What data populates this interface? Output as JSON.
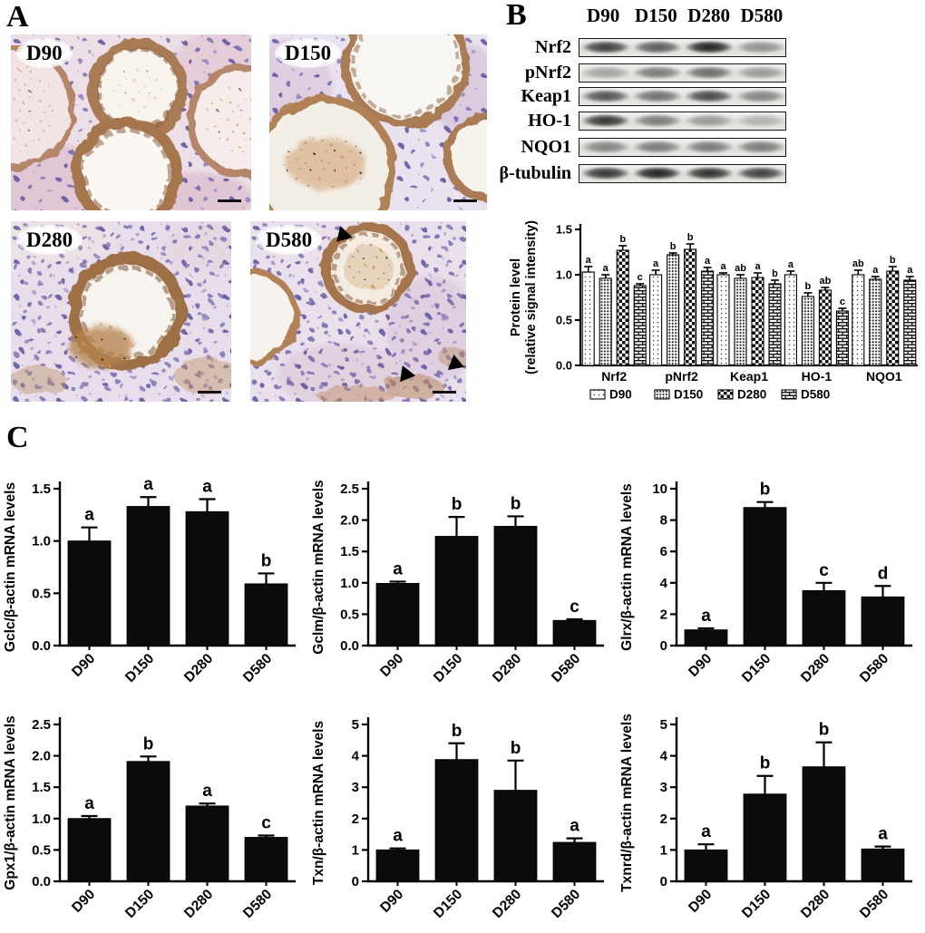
{
  "figure": {
    "panel_a": {
      "label": "A",
      "images": [
        {
          "label": "D90"
        },
        {
          "label": "D150"
        },
        {
          "label": "D280"
        },
        {
          "label": "D580",
          "arrowheads": 3
        }
      ]
    },
    "panel_b": {
      "label": "B",
      "lane_headers": [
        "D90",
        "D150",
        "D280",
        "D580"
      ],
      "blots": [
        {
          "target": "Nrf2",
          "bands": [
            0.8,
            0.65,
            0.95,
            0.38
          ]
        },
        {
          "target": "pNrf2",
          "bands": [
            0.3,
            0.5,
            0.58,
            0.35
          ]
        },
        {
          "target": "Keap1",
          "bands": [
            0.7,
            0.55,
            0.75,
            0.45
          ]
        },
        {
          "target": "HO-1",
          "bands": [
            0.85,
            0.5,
            0.35,
            0.22
          ]
        },
        {
          "target": "NQO1",
          "bands": [
            0.45,
            0.5,
            0.5,
            0.5
          ]
        },
        {
          "target": "β-tubulin",
          "bands": [
            0.85,
            0.95,
            0.88,
            0.8
          ]
        }
      ]
    },
    "panel_c": {
      "label": "C"
    }
  },
  "chart_data": [
    {
      "id": "protein-level",
      "type": "bar",
      "grouped": true,
      "categories": [
        "Nrf2",
        "pNrf2",
        "Keap1",
        "HO-1",
        "NQO1"
      ],
      "series": [
        {
          "name": "D90",
          "values": [
            1.03,
            1.0,
            1.0,
            1.0,
            1.0
          ],
          "errors": [
            0.06,
            0.05,
            0.02,
            0.04,
            0.05
          ],
          "letters": [
            "a",
            "a",
            "a",
            "a",
            "ab"
          ]
        },
        {
          "name": "D150",
          "values": [
            0.96,
            1.22,
            0.96,
            0.76,
            0.95
          ],
          "errors": [
            0.04,
            0.02,
            0.04,
            0.04,
            0.03
          ],
          "letters": [
            "a",
            "b",
            "ab",
            "b",
            "a"
          ]
        },
        {
          "name": "D280",
          "values": [
            1.27,
            1.28,
            0.97,
            0.83,
            1.04
          ],
          "errors": [
            0.05,
            0.06,
            0.05,
            0.03,
            0.05
          ],
          "letters": [
            "b",
            "b",
            "a",
            "ab",
            "b"
          ]
        },
        {
          "name": "D580",
          "values": [
            0.88,
            1.04,
            0.9,
            0.6,
            0.94
          ],
          "errors": [
            0.02,
            0.04,
            0.04,
            0.03,
            0.04
          ],
          "letters": [
            "c",
            "a",
            "b",
            "c",
            "a"
          ]
        }
      ],
      "ylabel_line1": "Protein level",
      "ylabel_line2": "(relative signal intensity)",
      "ylim": [
        0,
        1.5
      ],
      "ytick_step": 0.5,
      "decimals": 1,
      "legend": [
        "D90",
        "D150",
        "D280",
        "D580"
      ],
      "legend_position": "bottom",
      "grid": false
    },
    {
      "id": "gclc",
      "type": "bar",
      "ylabel": "Gclc/β-actin mRNA levels",
      "categories": [
        "D90",
        "D150",
        "D280",
        "D580"
      ],
      "values": [
        1.0,
        1.33,
        1.28,
        0.59
      ],
      "errors": [
        0.13,
        0.09,
        0.12,
        0.1
      ],
      "letters": [
        "a",
        "a",
        "a",
        "b"
      ],
      "ylim": [
        0,
        1.5
      ],
      "ytick_step": 0.5,
      "decimals": 1,
      "grid": false
    },
    {
      "id": "gclm",
      "type": "bar",
      "ylabel": "Gclm/β-actin mRNA levels",
      "categories": [
        "D90",
        "D150",
        "D280",
        "D580"
      ],
      "values": [
        0.99,
        1.74,
        1.9,
        0.4
      ],
      "errors": [
        0.03,
        0.31,
        0.16,
        0.02
      ],
      "letters": [
        "a",
        "b",
        "b",
        "c"
      ],
      "ylim": [
        0,
        2.5
      ],
      "ytick_step": 0.5,
      "decimals": 1,
      "grid": false
    },
    {
      "id": "glrx",
      "type": "bar",
      "ylabel": "Glrx/β-actin mRNA levels",
      "categories": [
        "D90",
        "D150",
        "D280",
        "D580"
      ],
      "values": [
        1.0,
        8.8,
        3.5,
        3.1
      ],
      "errors": [
        0.1,
        0.35,
        0.5,
        0.7
      ],
      "letters": [
        "a",
        "b",
        "c",
        "d"
      ],
      "ylim": [
        0,
        10
      ],
      "ytick_step": 2,
      "decimals": 0,
      "grid": false
    },
    {
      "id": "gpx1",
      "type": "bar",
      "ylabel": "Gpx1/β-actin mRNA levels",
      "categories": [
        "D90",
        "D150",
        "D280",
        "D580"
      ],
      "values": [
        1.0,
        1.91,
        1.2,
        0.7
      ],
      "errors": [
        0.04,
        0.08,
        0.04,
        0.03
      ],
      "letters": [
        "a",
        "b",
        "a",
        "c"
      ],
      "ylim": [
        0,
        2.5
      ],
      "ytick_step": 0.5,
      "decimals": 1,
      "grid": false
    },
    {
      "id": "txn",
      "type": "bar",
      "ylabel": "Txn/β-actin mRNA levels",
      "categories": [
        "D90",
        "D150",
        "D280",
        "D580"
      ],
      "values": [
        1.0,
        3.88,
        2.9,
        1.24
      ],
      "errors": [
        0.05,
        0.52,
        0.95,
        0.13
      ],
      "letters": [
        "a",
        "b",
        "b",
        "a"
      ],
      "ylim": [
        0,
        5
      ],
      "ytick_step": 1,
      "decimals": 0,
      "grid": false
    },
    {
      "id": "txnrd",
      "type": "bar",
      "ylabel": "Txnrd/β-actin mRNA levels",
      "categories": [
        "D90",
        "D150",
        "D280",
        "D580"
      ],
      "values": [
        1.0,
        2.78,
        3.65,
        1.03
      ],
      "errors": [
        0.18,
        0.58,
        0.78,
        0.08
      ],
      "letters": [
        "a",
        "b",
        "b",
        "a"
      ],
      "ylim": [
        0,
        5
      ],
      "ytick_step": 1,
      "decimals": 0,
      "grid": false
    }
  ]
}
